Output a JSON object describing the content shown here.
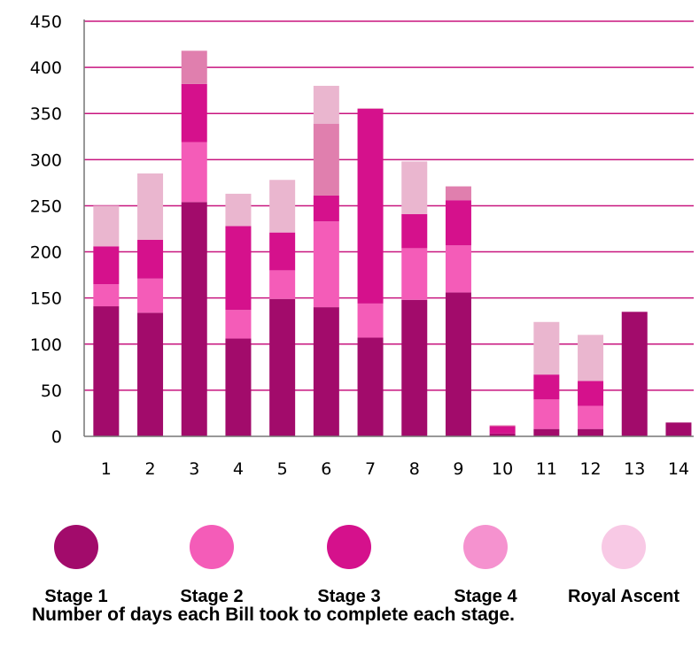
{
  "chart_data": {
    "type": "bar",
    "stacked": true,
    "caption": "Number of days each Bill took to complete each stage.",
    "categories": [
      "1",
      "2",
      "3",
      "4",
      "5",
      "6",
      "7",
      "8",
      "9",
      "10",
      "11",
      "12",
      "13",
      "14"
    ],
    "y_ticks": [
      0,
      50,
      100,
      150,
      200,
      250,
      300,
      350,
      400,
      450
    ],
    "ylim": [
      0,
      450
    ],
    "grid": "horizontal",
    "legend_placement": "bottom",
    "series": [
      {
        "name": "Stage 1",
        "values": [
          141,
          134,
          254,
          106,
          149,
          140,
          107,
          148,
          156,
          3,
          8,
          8,
          135,
          15
        ]
      },
      {
        "name": "Stage 2",
        "values": [
          24,
          37,
          65,
          31,
          31,
          93,
          37,
          56,
          51,
          0,
          32,
          25,
          0,
          0
        ]
      },
      {
        "name": "Stage 3",
        "values": [
          41,
          42,
          63,
          91,
          41,
          28,
          211,
          37,
          49,
          8,
          27,
          27,
          0,
          0
        ]
      },
      {
        "name": "Stage 4",
        "values": [
          0,
          0,
          36,
          0,
          0,
          78,
          0,
          0,
          15,
          1,
          0,
          0,
          0,
          0
        ]
      },
      {
        "name": "Royal Ascent",
        "values": [
          44,
          72,
          0,
          35,
          57,
          41,
          1,
          57,
          0,
          0,
          57,
          50,
          0,
          0
        ]
      }
    ],
    "bar_colors": [
      "#a20b6b",
      "#f45cb8",
      "#d5118c",
      "#e07fae",
      "#eab6cf"
    ],
    "legend_colors": [
      "#a20b6b",
      "#f45cb8",
      "#d5118c",
      "#f592cf",
      "#f8c9e5"
    ],
    "grid_color": "#c8157f",
    "axis_color": "#777777"
  }
}
